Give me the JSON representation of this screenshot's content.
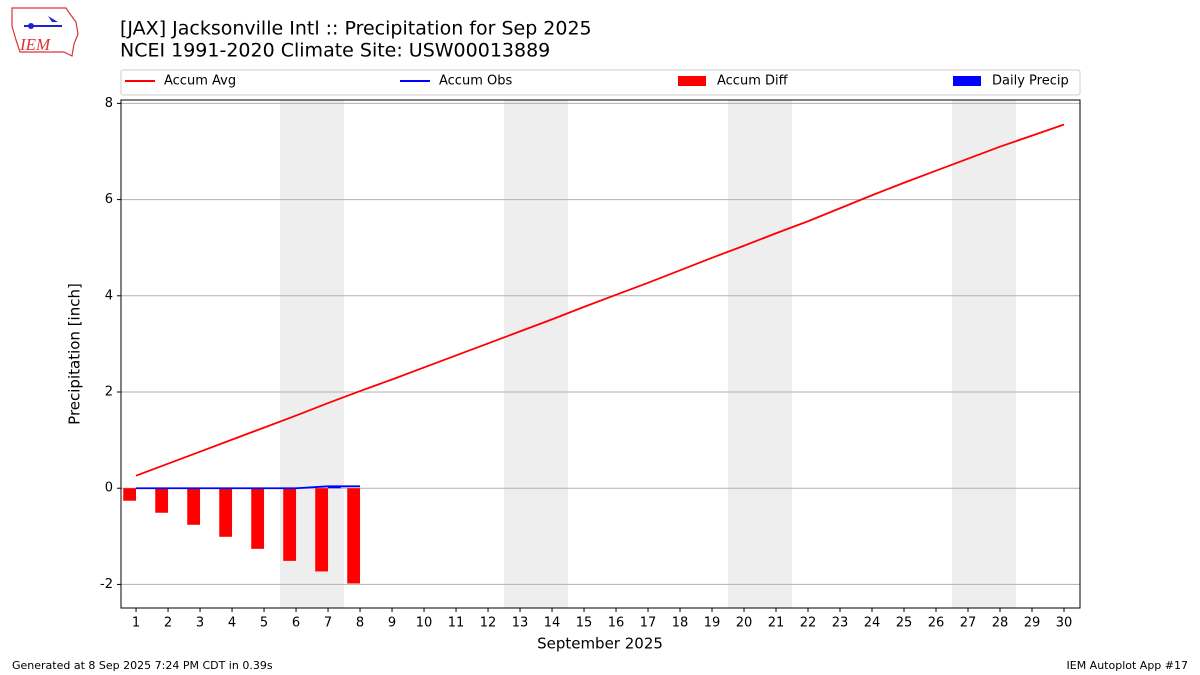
{
  "logo_text": "IEM",
  "footer_left": "Generated at 8 Sep 2025 7:24 PM CDT in 0.39s",
  "footer_right": "IEM Autoplot App #17",
  "chart_data": {
    "type": "combo",
    "title": "[JAX] Jacksonville Intl :: Precipitation for Sep 2025",
    "subtitle": "NCEI 1991-2020 Climate Site: USW00013889",
    "x_label": "September 2025",
    "y_label": "Precipitation [inch]",
    "x": [
      1,
      2,
      3,
      4,
      5,
      6,
      7,
      8,
      9,
      10,
      11,
      12,
      13,
      14,
      15,
      16,
      17,
      18,
      19,
      20,
      21,
      22,
      23,
      24,
      25,
      26,
      27,
      28,
      29,
      30
    ],
    "xlim": [
      0.53,
      30.5
    ],
    "ylim": [
      -2.49,
      8.07
    ],
    "yticks": [
      -2,
      0,
      2,
      4,
      6,
      8
    ],
    "grid": true,
    "legend": "top",
    "shaded_spans": [
      [
        5.5,
        7.5
      ],
      [
        12.5,
        14.5
      ],
      [
        19.5,
        21.5
      ],
      [
        26.5,
        28.5
      ]
    ],
    "shade_color": "#eeeeee",
    "series": [
      {
        "name": "Accum Avg",
        "kind": "line",
        "color": "#ff0000",
        "values": [
          0.26,
          0.51,
          0.76,
          1.01,
          1.26,
          1.51,
          1.77,
          2.02,
          2.26,
          2.51,
          2.76,
          3.01,
          3.26,
          3.51,
          3.77,
          4.02,
          4.27,
          4.53,
          4.79,
          5.04,
          5.3,
          5.55,
          5.82,
          6.09,
          6.35,
          6.6,
          6.85,
          7.1,
          7.33,
          7.56
        ]
      },
      {
        "name": "Accum Obs",
        "kind": "line",
        "color": "#0000ff",
        "values": [
          0,
          0,
          0,
          0,
          0,
          0,
          0.04,
          0.04,
          null,
          null,
          null,
          null,
          null,
          null,
          null,
          null,
          null,
          null,
          null,
          null,
          null,
          null,
          null,
          null,
          null,
          null,
          null,
          null,
          null,
          null
        ]
      },
      {
        "name": "Accum Diff",
        "kind": "bar",
        "offset": "left",
        "color": "#ff0000",
        "values": [
          -0.26,
          -0.51,
          -0.76,
          -1.01,
          -1.26,
          -1.51,
          -1.73,
          -1.98,
          null,
          null,
          null,
          null,
          null,
          null,
          null,
          null,
          null,
          null,
          null,
          null,
          null,
          null,
          null,
          null,
          null,
          null,
          null,
          null,
          null,
          null
        ]
      },
      {
        "name": "Daily Precip",
        "kind": "bar",
        "offset": "right",
        "color": "#0000ff",
        "values": [
          0,
          0,
          0,
          0,
          0,
          0,
          0.04,
          0,
          null,
          null,
          null,
          null,
          null,
          null,
          null,
          null,
          null,
          null,
          null,
          null,
          null,
          null,
          null,
          null,
          null,
          null,
          null,
          null,
          null,
          null
        ]
      }
    ]
  }
}
